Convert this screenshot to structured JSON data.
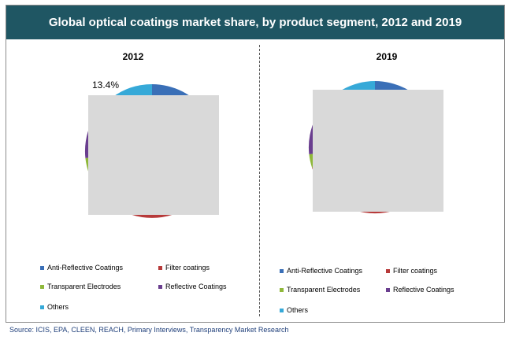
{
  "header": {
    "title": "Global optical coatings market share, by product segment, 2012 and 2019"
  },
  "source": "Source: ICIS, EPA, CLEEN, REACH, Primary Interviews, Transparency Market Research",
  "colors": {
    "title_bg": "#1f5663",
    "anti_reflective": "#3a6fb7",
    "filter": "#b73a3a",
    "transparent_electrodes": "#8fb83a",
    "reflective": "#6a3e8f",
    "others": "#36a9d8",
    "occluder": "#d9d9d9"
  },
  "legend": [
    {
      "label": "Anti-Reflective Coatings",
      "color": "#3a6fb7"
    },
    {
      "label": "Filter coatings",
      "color": "#b73a3a"
    },
    {
      "label": "Transparent Electrodes",
      "color": "#8fb83a"
    },
    {
      "label": "Reflective Coatings",
      "color": "#6a3e8f"
    },
    {
      "label": "Others",
      "color": "#36a9d8"
    }
  ],
  "chart_data": [
    {
      "type": "pie",
      "title": "2012",
      "categories": [
        "Anti-Reflective Coatings",
        "Filter coatings",
        "Transparent Electrodes",
        "Reflective Coatings",
        "Others"
      ],
      "values": [
        null,
        null,
        null,
        null,
        13.4
      ],
      "data_labels": [
        "13.4%"
      ],
      "legend_position": "bottom"
    },
    {
      "type": "pie",
      "title": "2019",
      "categories": [
        "Anti-Reflective Coatings",
        "Filter coatings",
        "Transparent Electrodes",
        "Reflective Coatings",
        "Others"
      ],
      "values": [
        null,
        null,
        null,
        null,
        null
      ],
      "data_labels": [],
      "legend_position": "bottom"
    }
  ]
}
